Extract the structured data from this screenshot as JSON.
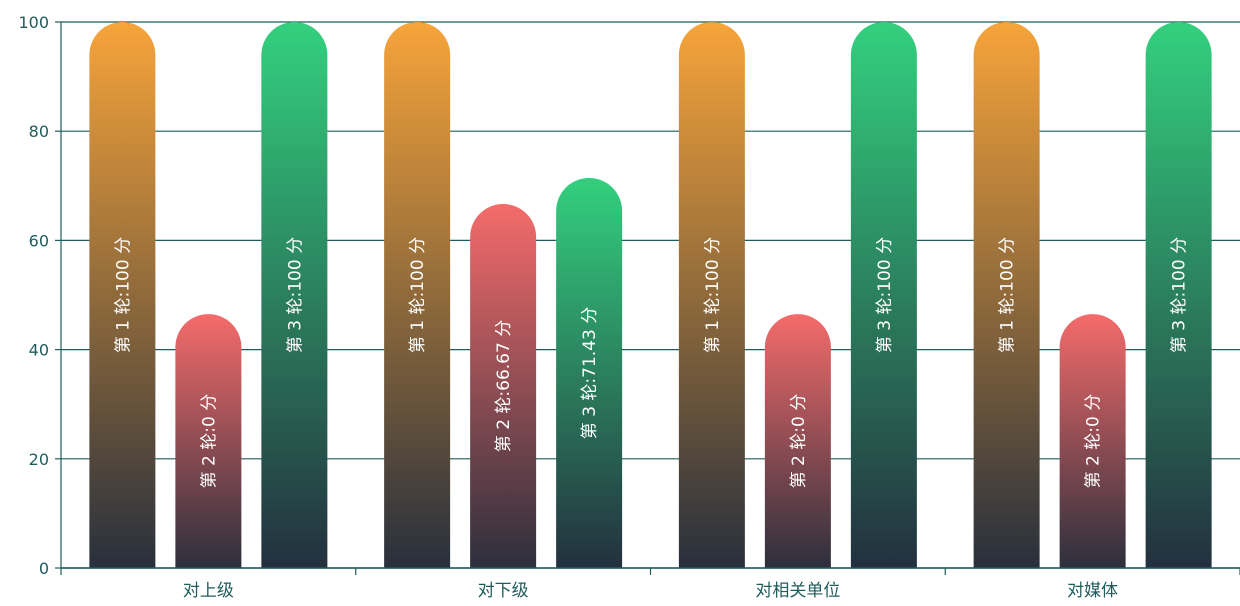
{
  "chart_data": {
    "type": "bar",
    "categories": [
      "对上级",
      "对下级",
      "对相关单位",
      "对媒体"
    ],
    "ylim": [
      0,
      100
    ],
    "yticks": [
      0,
      20,
      40,
      60,
      80,
      100
    ],
    "grid": true,
    "series": [
      {
        "round": "第 1 轮",
        "values": [
          100,
          100,
          100,
          100
        ],
        "labels": [
          "第 1 轮:100 分",
          "第 1 轮:100 分",
          "第 1 轮:100 分",
          "第 1 轮:100 分"
        ],
        "color_top": "#f7a43a",
        "color_bottom": "#28303c"
      },
      {
        "round": "第 2 轮",
        "values": [
          0,
          66.67,
          0,
          0
        ],
        "labels": [
          "第 2 轮:0 分",
          "第 2 轮:66.67 分",
          "第 2 轮:0 分",
          "第 2 轮:0 分"
        ],
        "color_top": "#f56b6b",
        "color_bottom": "#2c2f3c"
      },
      {
        "round": "第 3 轮",
        "values": [
          100,
          71.43,
          null,
          100
        ],
        "display_values": [
          100,
          71.43,
          100,
          100
        ],
        "labels": [
          "第 3 轮:100 分",
          "第 3 轮:71.43 分",
          "第 3 轮:100 分",
          "第 3 轮:100 分"
        ],
        "color_top": "#33d07e",
        "color_bottom": "#23303e"
      }
    ],
    "colors": {
      "axis": "#1f5c5c",
      "grid": "#1f5c5c"
    }
  }
}
